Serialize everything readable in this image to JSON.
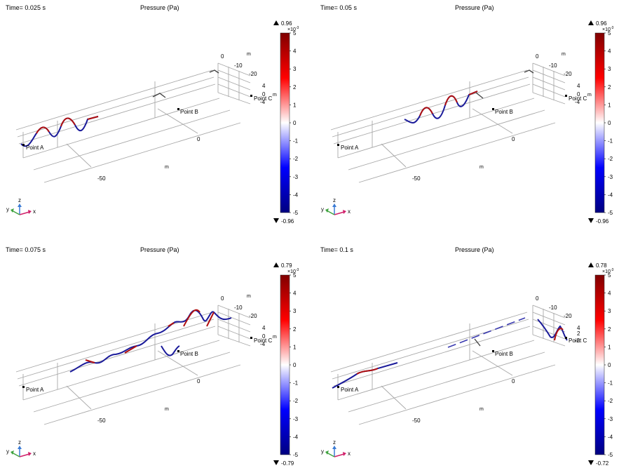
{
  "panels": [
    {
      "time_label": "Time= 0.025 s",
      "title": "Pressure (Pa)",
      "max_label": "0.96",
      "min_label": "-0.96"
    },
    {
      "time_label": "Time= 0.05 s",
      "title": "Pressure (Pa)",
      "max_label": "0.96",
      "min_label": "-0.96"
    },
    {
      "time_label": "Time= 0.075 s",
      "title": "Pressure (Pa)",
      "max_label": "0.79",
      "min_label": "-0.79"
    },
    {
      "time_label": "Time= 0.1 s",
      "title": "Pressure (Pa)",
      "max_label": "0.78",
      "min_label": "-0.72"
    }
  ],
  "axes": {
    "x_tick_zero": "0",
    "x_tick_minus50": "-50",
    "m_label": "m",
    "y_ticks": [
      "0",
      "-10",
      "-20"
    ],
    "z_ticks": [
      "4",
      "0",
      "-4"
    ],
    "z_ticks_last": [
      "4",
      "2",
      "-2"
    ],
    "z_label": "z",
    "y_label": "y",
    "x_label": "x"
  },
  "points": {
    "a": "Point A",
    "b": "Point B",
    "c": "Point C"
  },
  "colorbar": {
    "scale_label": "×10",
    "scale_exp": "-3",
    "ticks": [
      "5",
      "4",
      "3",
      "2",
      "1",
      "0",
      "-1",
      "-2",
      "-3",
      "-4",
      "-5"
    ],
    "colors": [
      "#000080",
      "#0000ff",
      "#ffffff",
      "#ff0000",
      "#800000"
    ]
  },
  "chart_data": {
    "type": "line",
    "color_map": "wave (blue-white-red)",
    "color_range": [
      -0.005,
      0.005
    ],
    "unit": "Pa",
    "panels": [
      {
        "time": 0.025,
        "max": 0.96,
        "min": -0.96
      },
      {
        "time": 0.05,
        "max": 0.96,
        "min": -0.96
      },
      {
        "time": 0.075,
        "max": 0.79,
        "min": -0.79
      },
      {
        "time": 0.1,
        "max": 0.78,
        "min": -0.72
      }
    ]
  }
}
